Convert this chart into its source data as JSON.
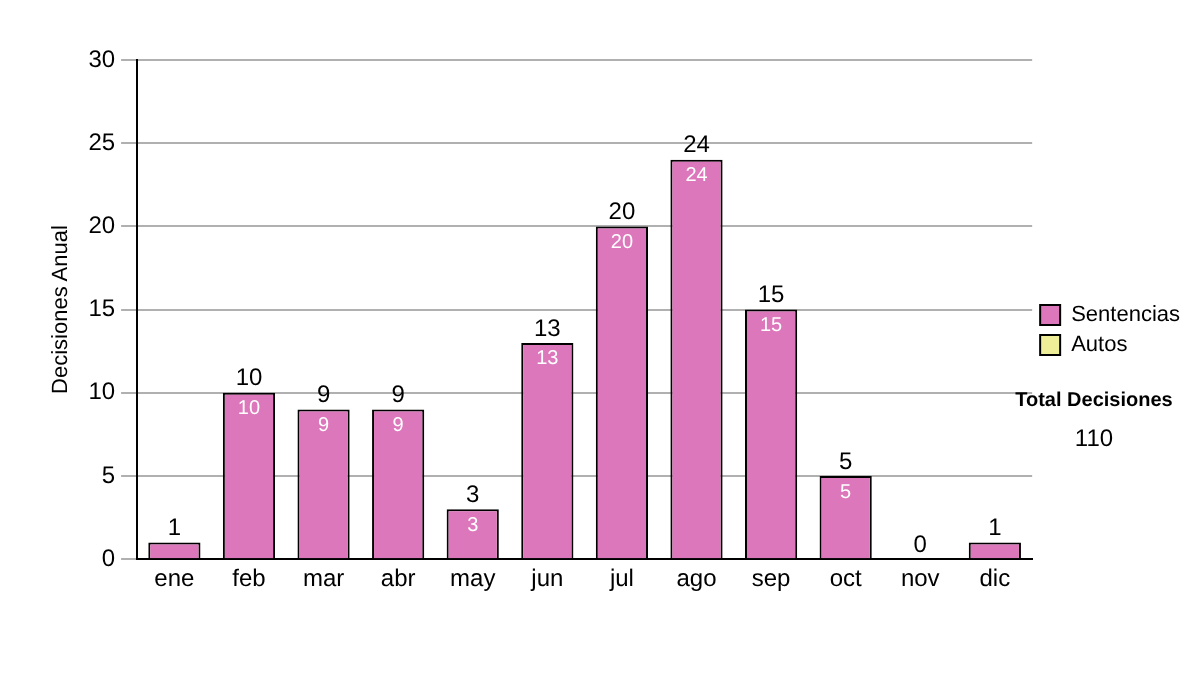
{
  "chart_data": {
    "type": "bar",
    "ylabel": "Decisiones Anual",
    "categories": [
      "ene",
      "feb",
      "mar",
      "abr",
      "may",
      "jun",
      "jul",
      "ago",
      "sep",
      "oct",
      "nov",
      "dic"
    ],
    "series": [
      {
        "name": "Sentencias",
        "color": "#dd77bb",
        "values": [
          1,
          10,
          9,
          9,
          3,
          13,
          20,
          24,
          15,
          5,
          0,
          1
        ],
        "value_labels": [
          null,
          "10",
          "9",
          "9",
          "3",
          "13",
          "20",
          "24",
          "15",
          "5",
          null,
          null
        ]
      },
      {
        "name": "Autos",
        "color": "#eeee99",
        "values": [
          0,
          0,
          0,
          0,
          0,
          0,
          0,
          0,
          0,
          0,
          0,
          0
        ]
      }
    ],
    "stacked": true,
    "totals": [
      "1",
      "10",
      "9",
      "9",
      "3",
      "13",
      "20",
      "24",
      "15",
      "5",
      "0",
      "1"
    ],
    "ylim": [
      0,
      30
    ],
    "yticks": [
      0,
      5,
      10,
      15,
      20,
      25,
      30
    ],
    "grid": "y",
    "legend": "right",
    "annotations": [
      "Total Decisiones",
      "110"
    ]
  }
}
